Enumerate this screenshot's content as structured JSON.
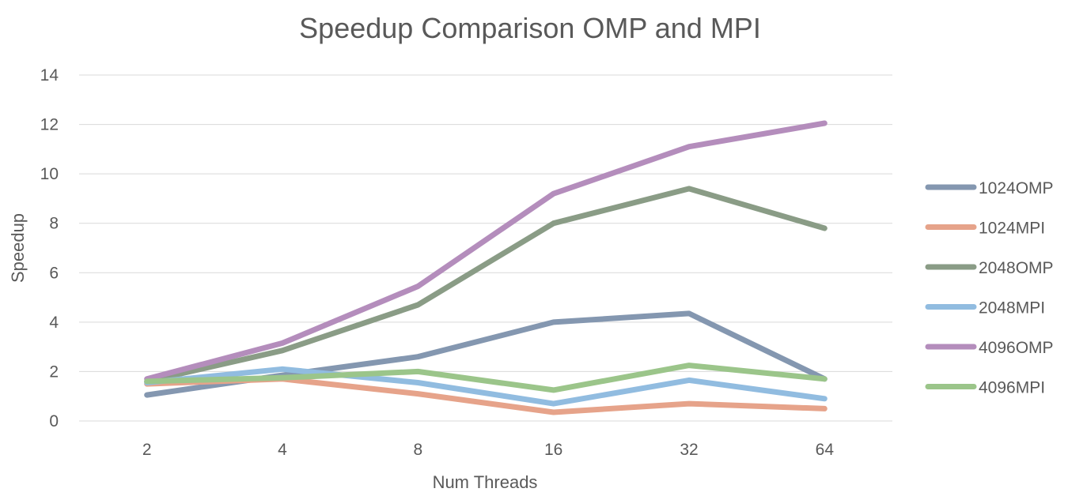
{
  "chart_data": {
    "type": "line",
    "title": "Speedup Comparison OMP and MPI",
    "xlabel": "Num Threads",
    "ylabel": "Speedup",
    "categories": [
      "2",
      "4",
      "8",
      "16",
      "32",
      "64"
    ],
    "ylim": [
      0,
      14
    ],
    "yticks": [
      0,
      2,
      4,
      6,
      8,
      10,
      12,
      14
    ],
    "grid": true,
    "legend_position": "right",
    "series": [
      {
        "name": "1024OMP",
        "color": "#8497b0",
        "values": [
          1.05,
          1.85,
          2.6,
          4.0,
          4.35,
          1.7
        ]
      },
      {
        "name": "1024MPI",
        "color": "#e6a38a",
        "values": [
          1.5,
          1.7,
          1.1,
          0.35,
          0.7,
          0.5
        ]
      },
      {
        "name": "2048OMP",
        "color": "#8a9c86",
        "values": [
          1.6,
          2.85,
          4.7,
          8.0,
          9.4,
          7.8
        ]
      },
      {
        "name": "2048MPI",
        "color": "#91bce0",
        "values": [
          1.55,
          2.1,
          1.55,
          0.7,
          1.65,
          0.9
        ]
      },
      {
        "name": "4096OMP",
        "color": "#b48dbc",
        "values": [
          1.7,
          3.15,
          5.45,
          9.2,
          11.1,
          12.05
        ]
      },
      {
        "name": "4096MPI",
        "color": "#9bc58a",
        "values": [
          1.6,
          1.75,
          2.0,
          1.25,
          2.25,
          1.7
        ]
      }
    ]
  }
}
